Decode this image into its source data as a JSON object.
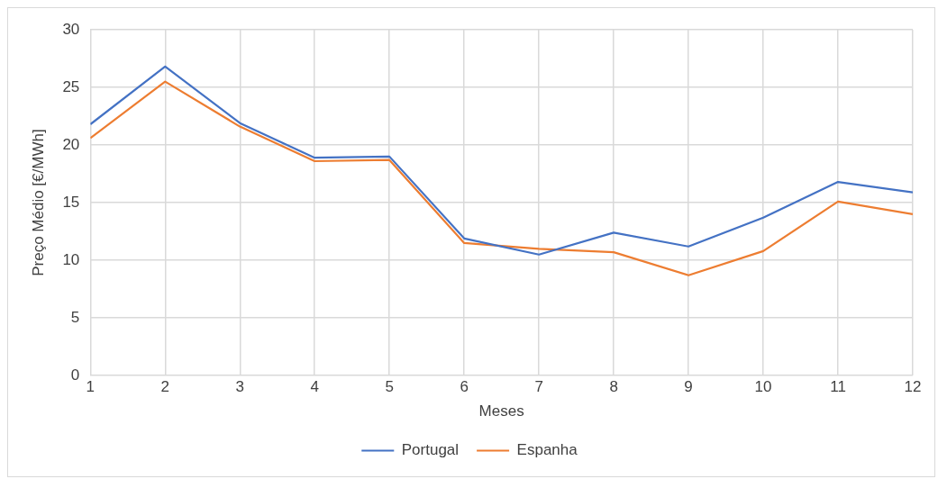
{
  "chart_data": {
    "type": "line",
    "xlabel": "Meses",
    "ylabel": "Preço Médio [€/MWh]",
    "x": [
      1,
      2,
      3,
      4,
      5,
      6,
      7,
      8,
      9,
      10,
      11,
      12
    ],
    "series": [
      {
        "name": "Portugal",
        "color": "#4472c4",
        "values": [
          21.8,
          26.8,
          21.9,
          18.9,
          19.0,
          11.9,
          10.5,
          12.4,
          11.2,
          13.7,
          16.8,
          15.9
        ]
      },
      {
        "name": "Espanha",
        "color": "#ed7d31",
        "values": [
          20.6,
          25.5,
          21.6,
          18.6,
          18.7,
          11.5,
          11.0,
          10.7,
          8.7,
          10.8,
          15.1,
          14.0
        ]
      }
    ],
    "xlim": [
      1,
      12
    ],
    "xticks": [
      1,
      2,
      3,
      4,
      5,
      6,
      7,
      8,
      9,
      10,
      11,
      12
    ],
    "ylim": [
      0,
      30
    ],
    "yticks": [
      0,
      5,
      10,
      15,
      20,
      25,
      30
    ],
    "grid": true,
    "legend": "bottom",
    "marker": "none",
    "line_style": "solid"
  }
}
